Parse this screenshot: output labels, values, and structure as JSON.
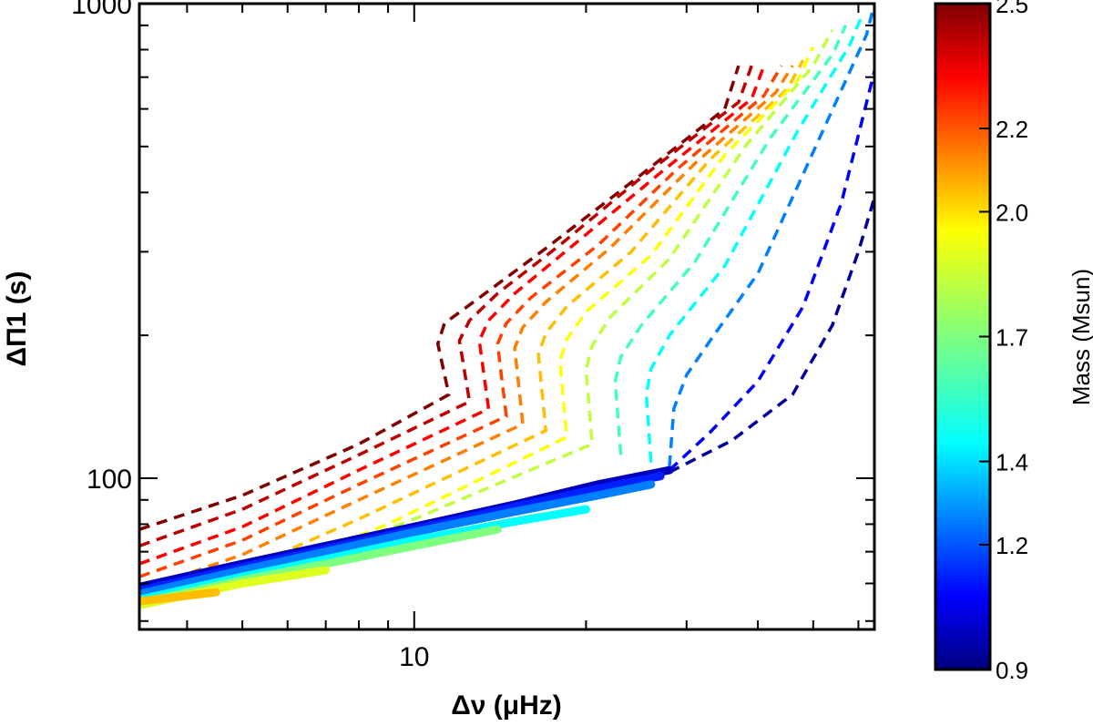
{
  "chart_data": {
    "type": "line",
    "xlabel": "Δν (μHz)",
    "ylabel": "ΔΠ1 (s)",
    "xscale": "log",
    "yscale": "log",
    "xlim": [
      3.3,
      64
    ],
    "ylim": [
      48,
      1000
    ],
    "x_tick_labels": [
      {
        "value": 10,
        "label": "10"
      }
    ],
    "y_tick_labels": [
      {
        "value": 100,
        "label": "100"
      },
      {
        "value": 1000,
        "label": "1000"
      }
    ],
    "grid": false,
    "colorbar": {
      "label": "Mass (Msun)",
      "range": [
        0.9,
        2.5
      ],
      "ticks": [
        "0.9",
        "1.2",
        "1.4",
        "1.7",
        "2.0",
        "2.2",
        "2.5"
      ],
      "colormap": "jet"
    },
    "dashed_tracks": [
      {
        "mass": 2.5,
        "points": [
          [
            3.3,
            78
          ],
          [
            5,
            92
          ],
          [
            8,
            118
          ],
          [
            11.5,
            150
          ],
          [
            11,
            192
          ],
          [
            11.3,
            212
          ],
          [
            13,
            240
          ],
          [
            17,
            305
          ],
          [
            24,
            420
          ],
          [
            35,
            600
          ],
          [
            37,
            740
          ]
        ]
      },
      {
        "mass": 2.4,
        "points": [
          [
            3.3,
            72
          ],
          [
            5,
            86
          ],
          [
            8,
            112
          ],
          [
            12.5,
            145
          ],
          [
            12,
            195
          ],
          [
            12.5,
            215
          ],
          [
            14,
            245
          ],
          [
            18,
            310
          ],
          [
            25,
            430
          ],
          [
            37,
            620
          ],
          [
            39,
            740
          ]
        ]
      },
      {
        "mass": 2.3,
        "points": [
          [
            3.3,
            66
          ],
          [
            5,
            79
          ],
          [
            8,
            104
          ],
          [
            13.5,
            140
          ],
          [
            13,
            195
          ],
          [
            13.5,
            215
          ],
          [
            15,
            245
          ],
          [
            19,
            310
          ],
          [
            27,
            440
          ],
          [
            39,
            630
          ],
          [
            41,
            740
          ]
        ]
      },
      {
        "mass": 2.2,
        "points": [
          [
            3.3,
            62
          ],
          [
            5,
            74
          ],
          [
            8,
            97
          ],
          [
            14.5,
            135
          ],
          [
            14,
            192
          ],
          [
            14.5,
            212
          ],
          [
            16,
            240
          ],
          [
            21,
            310
          ],
          [
            29,
            450
          ],
          [
            41,
            640
          ],
          [
            44,
            740
          ]
        ]
      },
      {
        "mass": 2.1,
        "points": [
          [
            3.3,
            58
          ],
          [
            5,
            69
          ],
          [
            8,
            90
          ],
          [
            15.5,
            130
          ],
          [
            15,
            188
          ],
          [
            15.5,
            208
          ],
          [
            17,
            235
          ],
          [
            22,
            305
          ],
          [
            31,
            460
          ],
          [
            43,
            650
          ],
          [
            46,
            740
          ]
        ]
      },
      {
        "mass": 2.0,
        "points": [
          [
            3.3,
            54
          ],
          [
            5,
            64
          ],
          [
            8,
            82
          ],
          [
            17,
            126
          ],
          [
            16.5,
            182
          ],
          [
            17,
            202
          ],
          [
            18.5,
            230
          ],
          [
            24,
            300
          ],
          [
            33,
            470
          ],
          [
            45,
            660
          ],
          [
            48,
            760
          ]
        ]
      },
      {
        "mass": 1.9,
        "points": [
          [
            4,
            56
          ],
          [
            6,
            66
          ],
          [
            9,
            80
          ],
          [
            18.5,
            122
          ],
          [
            18,
            176
          ],
          [
            18.5,
            196
          ],
          [
            20,
            224
          ],
          [
            26,
            295
          ],
          [
            35,
            480
          ],
          [
            47,
            690
          ],
          [
            50,
            810
          ]
        ]
      },
      {
        "mass": 1.8,
        "points": [
          [
            7,
            70
          ],
          [
            10,
            82
          ],
          [
            20.5,
            118
          ],
          [
            20,
            170
          ],
          [
            20.5,
            190
          ],
          [
            22,
            218
          ],
          [
            28,
            290
          ],
          [
            38,
            500
          ],
          [
            50,
            740
          ],
          [
            54,
            880
          ]
        ]
      },
      {
        "mass": 1.6,
        "points": [
          [
            23,
            112
          ],
          [
            22.5,
            160
          ],
          [
            23,
            180
          ],
          [
            25,
            210
          ],
          [
            31,
            285
          ],
          [
            42,
            520
          ],
          [
            54,
            780
          ],
          [
            57,
            900
          ]
        ]
      },
      {
        "mass": 1.5,
        "points": [
          [
            26,
            108
          ],
          [
            25.5,
            150
          ],
          [
            26,
            170
          ],
          [
            28,
            200
          ],
          [
            35,
            280
          ],
          [
            47,
            540
          ],
          [
            58,
            820
          ],
          [
            61,
            950
          ]
        ]
      },
      {
        "mass": 1.3,
        "points": [
          [
            28,
            106
          ],
          [
            28.5,
            140
          ],
          [
            30,
            165
          ],
          [
            33,
            195
          ],
          [
            40,
            270
          ],
          [
            52,
            540
          ],
          [
            62,
            860
          ],
          [
            64,
            1000
          ]
        ]
      },
      {
        "mass": 1.1,
        "points": [
          [
            28,
            104
          ],
          [
            33,
            125
          ],
          [
            40,
            160
          ],
          [
            48,
            230
          ],
          [
            56,
            380
          ],
          [
            64,
            720
          ]
        ]
      },
      {
        "mass": 0.95,
        "points": [
          [
            28,
            103
          ],
          [
            36,
            120
          ],
          [
            46,
            150
          ],
          [
            54,
            210
          ],
          [
            60,
            300
          ],
          [
            64,
            390
          ]
        ]
      }
    ],
    "solid_tracks": [
      {
        "mass": 1.0,
        "points": [
          [
            3.3,
            59
          ],
          [
            5,
            66
          ],
          [
            7,
            72
          ],
          [
            10,
            79
          ],
          [
            15,
            88
          ],
          [
            21,
            97
          ],
          [
            28,
            104
          ]
        ]
      },
      {
        "mass": 1.15,
        "points": [
          [
            3.3,
            58
          ],
          [
            5,
            65
          ],
          [
            7,
            71
          ],
          [
            10,
            78
          ],
          [
            15,
            87
          ],
          [
            21,
            95
          ],
          [
            27,
            101
          ]
        ]
      },
      {
        "mass": 1.3,
        "points": [
          [
            3.3,
            57
          ],
          [
            5,
            64
          ],
          [
            7,
            70
          ],
          [
            10,
            77
          ],
          [
            15,
            85
          ],
          [
            21,
            92
          ],
          [
            26,
            97
          ]
        ]
      },
      {
        "mass": 1.5,
        "points": [
          [
            3.3,
            55.5
          ],
          [
            5,
            62
          ],
          [
            7,
            67.5
          ],
          [
            10,
            74
          ],
          [
            15,
            81
          ],
          [
            20,
            86
          ]
        ]
      },
      {
        "mass": 1.7,
        "points": [
          [
            3.3,
            54.5
          ],
          [
            5,
            61
          ],
          [
            7,
            66
          ],
          [
            10,
            72
          ],
          [
            14,
            78
          ]
        ]
      },
      {
        "mass": 1.85,
        "points": [
          [
            3.3,
            54
          ],
          [
            5,
            60
          ],
          [
            7,
            64
          ]
        ]
      },
      {
        "mass": 2.0,
        "points": [
          [
            3.3,
            55
          ],
          [
            4.5,
            57.5
          ]
        ]
      }
    ]
  }
}
